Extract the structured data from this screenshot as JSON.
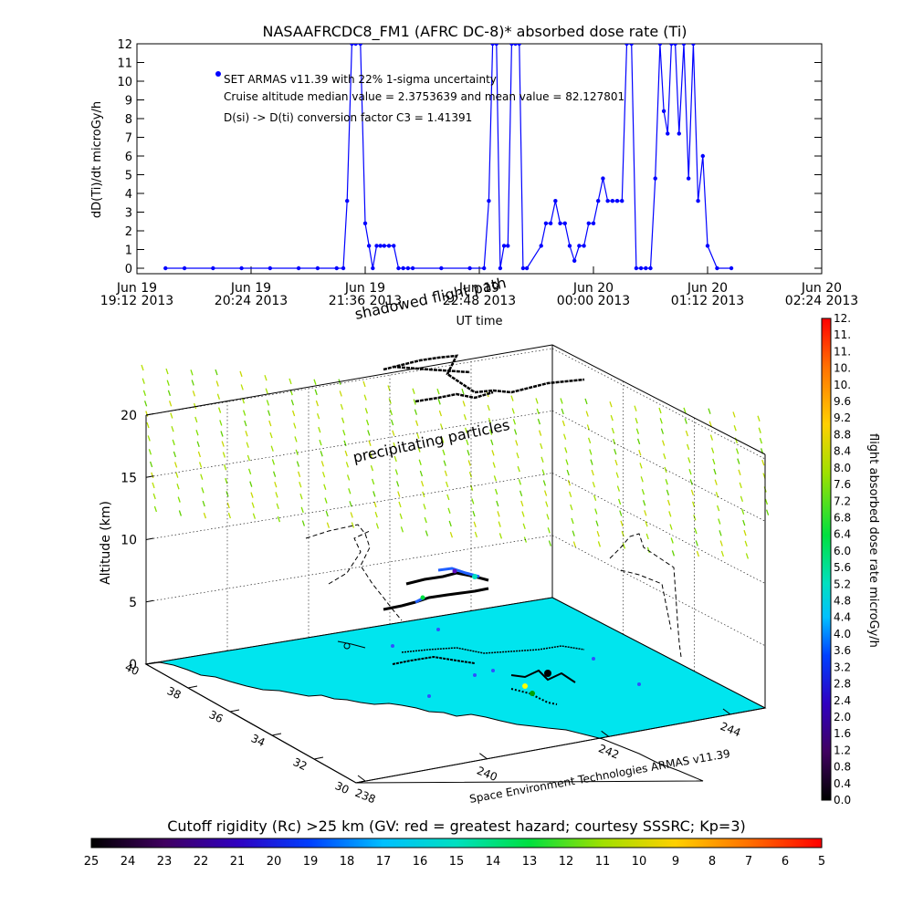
{
  "chart_data": [
    {
      "type": "line",
      "title": "NASAAFRCDC8_FM1 (AFRC DC-8)* absorbed dose rate (Ti)",
      "ylabel": "dD(Ti)/dt microGy/h",
      "xlabel": "UT time",
      "ylim": [
        0,
        12
      ],
      "yticks": [
        "0",
        "1",
        "2",
        "3",
        "4",
        "5",
        "6",
        "7",
        "8",
        "9",
        "10",
        "11",
        "12"
      ],
      "xtick_labels": [
        {
          "l1": "Jun 19",
          "l2": "19:12 2013"
        },
        {
          "l1": "Jun 19",
          "l2": "20:24 2013"
        },
        {
          "l1": "Jun 19",
          "l2": "21:36 2013"
        },
        {
          "l1": "Jun 19",
          "l2": "22:48 2013"
        },
        {
          "l1": "Jun 20",
          "l2": "00:00 2013"
        },
        {
          "l1": "Jun 20",
          "l2": "01:12 2013"
        },
        {
          "l1": "Jun 20",
          "l2": "02:24 2013"
        }
      ],
      "x_hours": [
        19.2,
        20.4,
        21.6,
        22.8,
        24.0,
        25.2,
        26.4
      ],
      "annotations": [
        "SET ARMAS v11.39 with 22% 1-sigma uncertainty",
        "Cruise altitude median value = 2.3753639 and mean value = 82.127801",
        "D(si) -> D(ti) conversion factor C3 = 1.41391"
      ],
      "series": [
        {
          "color": "#0000ff",
          "x": [
            19.5,
            19.7,
            20.0,
            20.3,
            20.6,
            20.9,
            21.1,
            21.3,
            21.37,
            21.41,
            21.46,
            21.5,
            21.55,
            21.6,
            21.64,
            21.68,
            21.72,
            21.76,
            21.8,
            21.85,
            21.9,
            21.95,
            22.0,
            22.05,
            22.1,
            22.4,
            22.7,
            22.85,
            22.9,
            22.94,
            22.98,
            23.02,
            23.06,
            23.1,
            23.14,
            23.18,
            23.22,
            23.26,
            23.3,
            23.45,
            23.5,
            23.55,
            23.6,
            23.65,
            23.7,
            23.75,
            23.8,
            23.85,
            23.9,
            23.95,
            24.0,
            24.05,
            24.1,
            24.15,
            24.2,
            24.25,
            24.3,
            24.35,
            24.4,
            24.45,
            24.5,
            24.55,
            24.6,
            24.65,
            24.7,
            24.74,
            24.78,
            24.82,
            24.86,
            24.9,
            24.95,
            25.0,
            25.05,
            25.1,
            25.15,
            25.2,
            25.3,
            25.45
          ],
          "y": [
            0,
            0,
            0,
            0,
            0,
            0,
            0,
            0,
            0,
            3.6,
            12,
            12,
            12,
            2.4,
            1.2,
            0,
            1.2,
            1.2,
            1.2,
            1.2,
            1.2,
            0,
            0,
            0,
            0,
            0,
            0,
            0,
            3.6,
            12,
            12,
            0,
            1.2,
            1.2,
            12,
            12,
            12,
            0,
            0,
            1.2,
            2.4,
            2.4,
            3.6,
            2.4,
            2.4,
            1.2,
            0.4,
            1.2,
            1.2,
            2.4,
            2.4,
            3.6,
            4.8,
            3.6,
            3.6,
            3.6,
            3.6,
            12,
            12,
            0,
            0,
            0,
            0,
            4.8,
            12,
            8.4,
            7.2,
            12,
            12,
            7.2,
            12,
            4.8,
            12,
            3.6,
            6.0,
            1.2,
            0,
            0
          ]
        }
      ]
    },
    {
      "type": "scatter",
      "title": "",
      "zlabel": "Altitude (km)",
      "zlim": [
        0,
        20
      ],
      "zticks": [
        "0",
        "5",
        "10",
        "15",
        "20"
      ],
      "lat_ticks": [
        "30",
        "32",
        "34",
        "36",
        "38",
        "40"
      ],
      "lon_ticks": [
        "238",
        "240",
        "242",
        "244"
      ],
      "annotations": [
        "shadowed flight path",
        "precipitating particles"
      ],
      "credit": "Space Environment Technologies ARMAS v11.39",
      "colorbar": {
        "label": "flight absorbed dose rate microGy/h",
        "ticks": [
          "0.0",
          "0.4",
          "0.8",
          "1.2",
          "1.6",
          "2.0",
          "2.4",
          "2.8",
          "3.2",
          "3.6",
          "4.0",
          "4.4",
          "4.8",
          "5.2",
          "5.6",
          "6.0",
          "6.4",
          "6.8",
          "7.2",
          "7.6",
          "8.0",
          "8.4",
          "8.8",
          "9.2",
          "9.6",
          "10.",
          "10.",
          "11.",
          "11.",
          "12."
        ]
      }
    },
    {
      "type": "heatmap",
      "title": "Cutoff rigidity (Rc) >25 km (GV: red = greatest hazard; courtesy SSSRC; Kp=3)",
      "colorbar_ticks": [
        "25",
        "24",
        "23",
        "22",
        "21",
        "20",
        "19",
        "18",
        "17",
        "16",
        "15",
        "14",
        "13",
        "12",
        "11",
        "10",
        "9",
        "8",
        "7",
        "6",
        "5"
      ]
    }
  ],
  "colors": {
    "series": "#0000ff",
    "ocean": "#00e5ee",
    "land": "#ffffff",
    "particles": "#80e000"
  }
}
